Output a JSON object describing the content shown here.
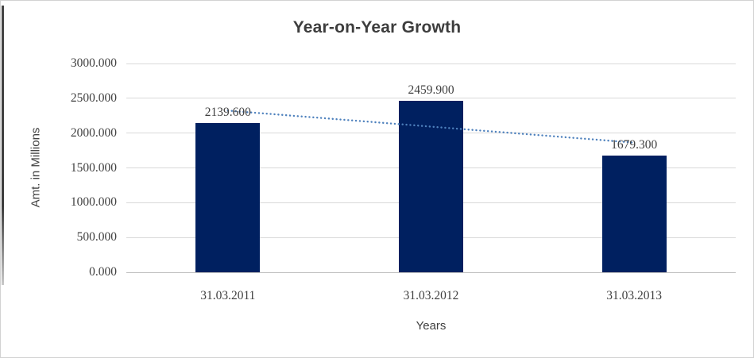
{
  "chart_data": {
    "type": "bar",
    "title": "Year-on-Year Growth",
    "xlabel": "Years",
    "ylabel": "Amt. in Millions",
    "categories": [
      "31.03.2011",
      "31.03.2012",
      "31.03.2013"
    ],
    "values": [
      2139.6,
      2459.9,
      1679.3
    ],
    "value_labels": [
      "2139.600",
      "2459.900",
      "1679.300"
    ],
    "ylim": [
      0,
      3000
    ],
    "ytick_step": 500,
    "ytick_labels": [
      "0.000",
      "500.000",
      "1000.000",
      "1500.000",
      "2000.000",
      "2500.000",
      "3000.000"
    ],
    "grid": true,
    "legend": "none",
    "trendline": {
      "type": "linear",
      "style": "dotted"
    },
    "colors": {
      "bar": "#002060",
      "trendline": "#4e81bd",
      "gridline": "#d9d9d9",
      "axis_line": "#bfbfbf",
      "text": "#404040",
      "border": "#d2d2d2"
    }
  }
}
